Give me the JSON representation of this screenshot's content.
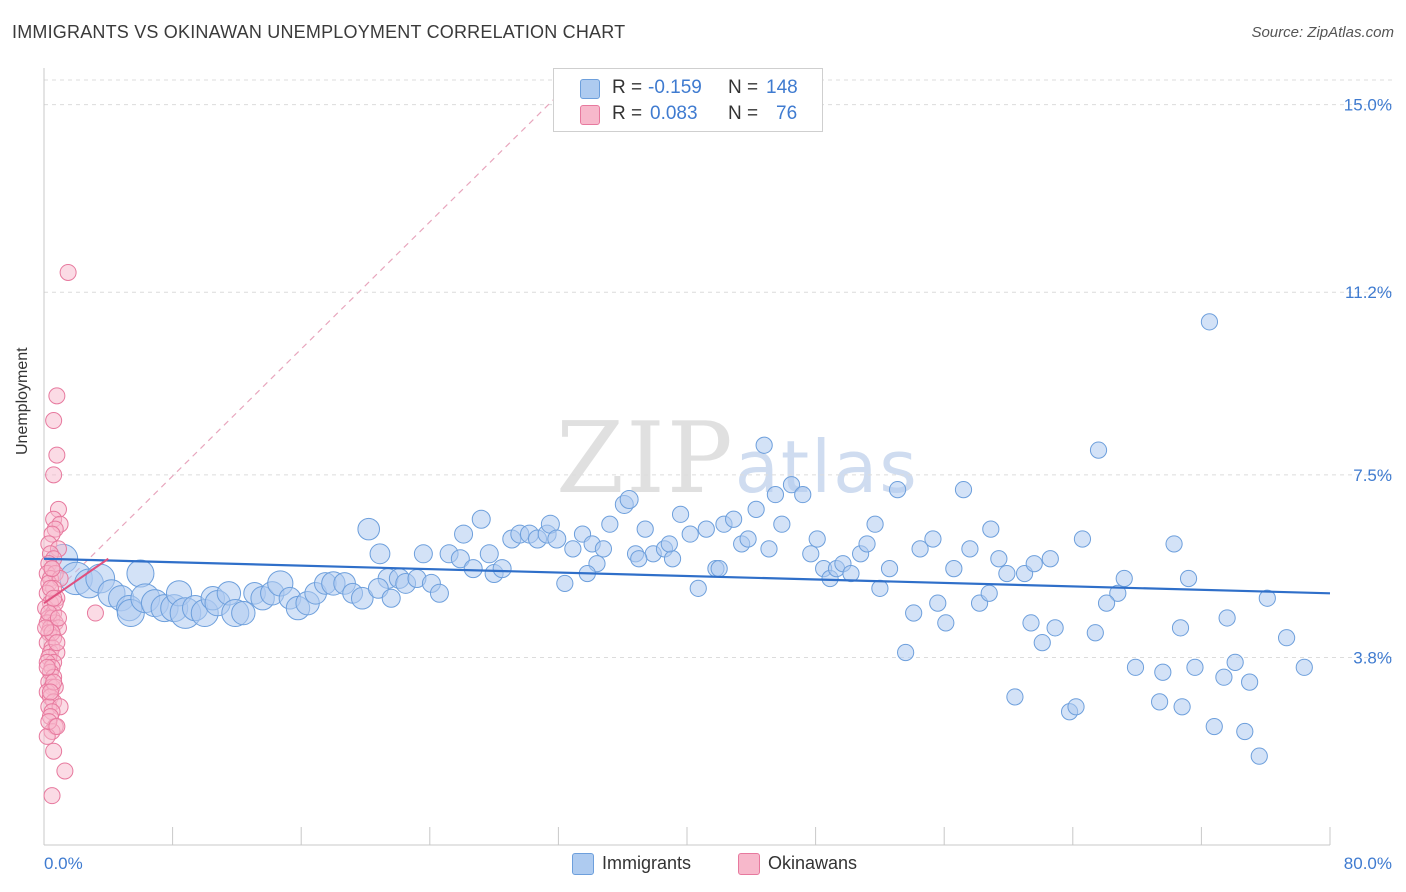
{
  "header": {
    "title": "IMMIGRANTS VS OKINAWAN UNEMPLOYMENT CORRELATION CHART",
    "source": "Source: ZipAtlas.com"
  },
  "watermark": {
    "zip": "ZIP",
    "atlas": "atlas"
  },
  "legend": {
    "immigrants": {
      "r_label": "R =",
      "r_value": "-0.159",
      "n_label": "N =",
      "n_value": "148"
    },
    "okinawans": {
      "r_label": "R =",
      "r_value": "0.083",
      "n_label": "N =",
      "n_value": "76"
    }
  },
  "bottom_legend": {
    "immigrants": "Immigrants",
    "okinawans": "Okinawans"
  },
  "colors": {
    "blue_fill": "#aecbf0",
    "blue_stroke": "#6d9fdc",
    "blue_line": "#2f6fc9",
    "pink_fill": "#f7b8cb",
    "pink_stroke": "#e7799e",
    "pink_line": "#e0507f",
    "label_blue": "#3f7bd0"
  },
  "chart_data": {
    "type": "scatter",
    "title": "IMMIGRANTS VS OKINAWAN UNEMPLOYMENT CORRELATION CHART",
    "xlabel": "",
    "ylabel": "Unemployment",
    "xlim": [
      0,
      80
    ],
    "ylim": [
      0,
      15.5
    ],
    "x_tick_labels": [
      "0.0%",
      "80.0%"
    ],
    "y_ticks": [
      3.8,
      7.5,
      11.2,
      15.0
    ],
    "y_tick_labels": [
      "3.8%",
      "7.5%",
      "11.2%",
      "15.0%"
    ],
    "grid": true,
    "series": [
      {
        "name": "Immigrants",
        "r": -0.159,
        "n": 148,
        "trend": {
          "x": [
            0,
            80
          ],
          "y": [
            5.8,
            5.1
          ]
        },
        "points": [
          [
            1.2,
            5.8,
            1.6
          ],
          [
            2.0,
            5.4,
            1.8
          ],
          [
            2.8,
            5.3,
            1.6
          ],
          [
            3.5,
            5.4,
            1.6
          ],
          [
            4.2,
            5.1,
            1.5
          ],
          [
            4.8,
            5.0,
            1.4
          ],
          [
            5.3,
            4.8,
            1.4
          ],
          [
            5.4,
            4.7,
            1.5
          ],
          [
            6.0,
            5.5,
            1.5
          ],
          [
            6.3,
            5.0,
            1.6
          ],
          [
            6.9,
            4.9,
            1.5
          ],
          [
            7.5,
            4.8,
            1.5
          ],
          [
            8.1,
            4.8,
            1.5
          ],
          [
            8.4,
            5.1,
            1.4
          ],
          [
            8.8,
            4.7,
            1.7
          ],
          [
            9.4,
            4.8,
            1.4
          ],
          [
            10.0,
            4.7,
            1.5
          ],
          [
            10.5,
            5.0,
            1.3
          ],
          [
            10.8,
            4.9,
            1.4
          ],
          [
            11.5,
            5.1,
            1.3
          ],
          [
            11.9,
            4.7,
            1.5
          ],
          [
            12.4,
            4.7,
            1.3
          ],
          [
            13.1,
            5.1,
            1.2
          ],
          [
            13.6,
            5.0,
            1.3
          ],
          [
            14.2,
            5.1,
            1.3
          ],
          [
            14.7,
            5.3,
            1.4
          ],
          [
            15.3,
            5.0,
            1.2
          ],
          [
            15.8,
            4.8,
            1.3
          ],
          [
            16.4,
            4.9,
            1.3
          ],
          [
            16.9,
            5.1,
            1.2
          ],
          [
            17.5,
            5.3,
            1.2
          ],
          [
            18.0,
            5.3,
            1.3
          ],
          [
            18.7,
            5.3,
            1.2
          ],
          [
            19.2,
            5.1,
            1.1
          ],
          [
            20.2,
            6.4,
            1.2
          ],
          [
            20.9,
            5.9,
            1.1
          ],
          [
            21.4,
            5.4,
            1.1
          ],
          [
            22.1,
            5.4,
            1.1
          ],
          [
            22.5,
            5.3,
            1.1
          ],
          [
            23.2,
            5.4,
            1.0
          ],
          [
            23.6,
            5.9,
            1.0
          ],
          [
            24.1,
            5.3,
            1.0
          ],
          [
            24.6,
            5.1,
            1.0
          ],
          [
            25.2,
            5.9,
            1.0
          ],
          [
            25.9,
            5.8,
            1.0
          ],
          [
            26.1,
            6.3,
            1.0
          ],
          [
            26.7,
            5.6,
            1.0
          ],
          [
            27.2,
            6.6,
            1.0
          ],
          [
            27.7,
            5.9,
            1.0
          ],
          [
            28.0,
            5.5,
            1.0
          ],
          [
            28.5,
            5.6,
            1.0
          ],
          [
            29.1,
            6.2,
            1.0
          ],
          [
            29.6,
            6.3,
            1.0
          ],
          [
            30.2,
            6.3,
            1.0
          ],
          [
            30.7,
            6.2,
            1.0
          ],
          [
            31.3,
            6.3,
            1.0
          ],
          [
            31.5,
            6.5,
            1.0
          ],
          [
            31.9,
            6.2,
            1.0
          ],
          [
            32.4,
            5.3,
            0.9
          ],
          [
            32.9,
            6.0,
            0.9
          ],
          [
            33.5,
            6.3,
            0.9
          ],
          [
            34.1,
            6.1,
            0.9
          ],
          [
            34.8,
            6.0,
            0.9
          ],
          [
            35.2,
            6.5,
            0.9
          ],
          [
            36.1,
            6.9,
            1.0
          ],
          [
            36.4,
            7.0,
            1.0
          ],
          [
            36.8,
            5.9,
            0.9
          ],
          [
            37.4,
            6.4,
            0.9
          ],
          [
            37.9,
            5.9,
            0.9
          ],
          [
            38.6,
            6.0,
            0.9
          ],
          [
            39.1,
            5.8,
            0.9
          ],
          [
            39.6,
            6.7,
            0.9
          ],
          [
            40.2,
            6.3,
            0.9
          ],
          [
            40.7,
            5.2,
            0.9
          ],
          [
            41.2,
            6.4,
            0.9
          ],
          [
            41.8,
            5.6,
            0.9
          ],
          [
            42.3,
            6.5,
            0.9
          ],
          [
            42.9,
            6.6,
            0.9
          ],
          [
            43.4,
            6.1,
            0.9
          ],
          [
            43.8,
            6.2,
            0.9
          ],
          [
            44.3,
            6.8,
            0.9
          ],
          [
            44.8,
            8.1,
            0.9
          ],
          [
            45.5,
            7.1,
            0.9
          ],
          [
            45.9,
            6.5,
            0.9
          ],
          [
            46.5,
            7.3,
            0.9
          ],
          [
            47.2,
            7.1,
            0.9
          ],
          [
            47.7,
            5.9,
            0.9
          ],
          [
            48.1,
            6.2,
            0.9
          ],
          [
            48.5,
            5.6,
            0.9
          ],
          [
            48.9,
            5.4,
            0.9
          ],
          [
            49.3,
            5.6,
            0.9
          ],
          [
            49.7,
            5.7,
            0.9
          ],
          [
            50.2,
            5.5,
            0.9
          ],
          [
            50.8,
            5.9,
            0.9
          ],
          [
            51.2,
            6.1,
            0.9
          ],
          [
            51.7,
            6.5,
            0.9
          ],
          [
            52.0,
            5.2,
            0.9
          ],
          [
            52.6,
            5.6,
            0.9
          ],
          [
            53.1,
            7.2,
            0.9
          ],
          [
            53.6,
            3.9,
            0.9
          ],
          [
            54.1,
            4.7,
            0.9
          ],
          [
            54.5,
            6.0,
            0.9
          ],
          [
            55.3,
            6.2,
            0.9
          ],
          [
            55.6,
            4.9,
            0.9
          ],
          [
            56.1,
            4.5,
            0.9
          ],
          [
            56.6,
            5.6,
            0.9
          ],
          [
            57.2,
            7.2,
            0.9
          ],
          [
            57.6,
            6.0,
            0.9
          ],
          [
            58.2,
            4.9,
            0.9
          ],
          [
            58.8,
            5.1,
            0.9
          ],
          [
            59.4,
            5.8,
            0.9
          ],
          [
            59.9,
            5.5,
            0.9
          ],
          [
            60.4,
            3.0,
            0.9
          ],
          [
            61.0,
            5.5,
            0.9
          ],
          [
            61.4,
            4.5,
            0.9
          ],
          [
            62.1,
            4.1,
            0.9
          ],
          [
            62.6,
            5.8,
            0.9
          ],
          [
            62.9,
            4.4,
            0.9
          ],
          [
            63.8,
            2.7,
            0.9
          ],
          [
            64.2,
            2.8,
            0.9
          ],
          [
            64.6,
            6.2,
            0.9
          ],
          [
            65.4,
            4.3,
            0.9
          ],
          [
            65.6,
            8.0,
            0.9
          ],
          [
            66.8,
            5.1,
            0.9
          ],
          [
            67.9,
            3.6,
            0.9
          ],
          [
            69.4,
            2.9,
            0.9
          ],
          [
            69.6,
            3.5,
            0.9
          ],
          [
            70.3,
            6.1,
            0.9
          ],
          [
            70.8,
            2.8,
            0.9
          ],
          [
            71.2,
            5.4,
            0.9
          ],
          [
            71.6,
            3.6,
            0.9
          ],
          [
            72.5,
            10.6,
            0.9
          ],
          [
            72.8,
            2.4,
            0.9
          ],
          [
            73.4,
            3.4,
            0.9
          ],
          [
            73.6,
            4.6,
            0.9
          ],
          [
            74.1,
            3.7,
            0.9
          ],
          [
            74.7,
            2.3,
            0.9
          ],
          [
            75.0,
            3.3,
            0.9
          ],
          [
            75.6,
            1.8,
            0.9
          ],
          [
            78.4,
            3.6,
            0.9
          ],
          [
            19.8,
            5.0,
            1.2
          ],
          [
            20.8,
            5.2,
            1.1
          ],
          [
            21.6,
            5.0,
            1.0
          ],
          [
            34.4,
            5.7,
            0.9
          ],
          [
            37.0,
            5.8,
            0.9
          ],
          [
            38.9,
            6.1,
            0.9
          ],
          [
            42.0,
            5.6,
            0.9
          ],
          [
            45.1,
            6.0,
            0.9
          ],
          [
            58.9,
            6.4,
            0.9
          ],
          [
            61.6,
            5.7,
            0.9
          ],
          [
            66.1,
            4.9,
            0.9
          ],
          [
            70.7,
            4.4,
            0.9
          ],
          [
            77.3,
            4.2,
            0.9
          ],
          [
            76.1,
            5.0,
            0.9
          ],
          [
            67.2,
            5.4,
            0.9
          ],
          [
            33.8,
            5.5,
            0.9
          ]
        ]
      },
      {
        "name": "Okinawans",
        "r": 0.083,
        "n": 76,
        "trend_solid": {
          "x": [
            0,
            4.0
          ],
          "y": [
            4.9,
            5.8
          ]
        },
        "trend_dashed": {
          "x": [
            0,
            32.0
          ],
          "y": [
            4.9,
            15.2
          ]
        },
        "points": [
          [
            1.5,
            11.6
          ],
          [
            0.8,
            9.1
          ],
          [
            0.6,
            8.6
          ],
          [
            0.8,
            7.9
          ],
          [
            0.6,
            7.5
          ],
          [
            0.9,
            6.8
          ],
          [
            0.6,
            6.6
          ],
          [
            1.0,
            6.5
          ],
          [
            0.7,
            6.4
          ],
          [
            0.5,
            6.3
          ],
          [
            0.3,
            6.1
          ],
          [
            0.9,
            6.0
          ],
          [
            0.4,
            5.9
          ],
          [
            0.6,
            5.8
          ],
          [
            0.3,
            5.7
          ],
          [
            0.5,
            5.6
          ],
          [
            0.2,
            5.5
          ],
          [
            0.7,
            5.5
          ],
          [
            0.4,
            5.4
          ],
          [
            0.3,
            5.3
          ],
          [
            1.0,
            5.4
          ],
          [
            0.6,
            5.2
          ],
          [
            0.2,
            5.1
          ],
          [
            0.8,
            5.0
          ],
          [
            0.4,
            4.9
          ],
          [
            0.1,
            4.8
          ],
          [
            0.6,
            4.7
          ],
          [
            0.3,
            4.6
          ],
          [
            0.5,
            4.6
          ],
          [
            3.2,
            4.7
          ],
          [
            0.2,
            4.5
          ],
          [
            0.7,
            4.5
          ],
          [
            0.4,
            4.4
          ],
          [
            0.9,
            4.4
          ],
          [
            0.3,
            4.3
          ],
          [
            0.6,
            4.2
          ],
          [
            0.2,
            4.1
          ],
          [
            0.5,
            4.0
          ],
          [
            0.4,
            3.9
          ],
          [
            0.8,
            3.9
          ],
          [
            0.3,
            3.8
          ],
          [
            0.6,
            3.7
          ],
          [
            0.2,
            3.7
          ],
          [
            0.5,
            3.6
          ],
          [
            0.4,
            3.5
          ],
          [
            0.6,
            3.4
          ],
          [
            0.3,
            3.3
          ],
          [
            0.5,
            3.2
          ],
          [
            0.7,
            3.2
          ],
          [
            0.2,
            3.1
          ],
          [
            0.4,
            3.0
          ],
          [
            0.6,
            2.9
          ],
          [
            0.3,
            2.8
          ],
          [
            1.0,
            2.8
          ],
          [
            0.5,
            2.7
          ],
          [
            0.4,
            2.6
          ],
          [
            0.7,
            2.4
          ],
          [
            0.5,
            2.3
          ],
          [
            0.2,
            2.2
          ],
          [
            0.6,
            1.9
          ],
          [
            1.3,
            1.5
          ],
          [
            0.5,
            1.0
          ],
          [
            0.4,
            5.2
          ],
          [
            0.7,
            4.9
          ],
          [
            0.3,
            4.7
          ],
          [
            0.5,
            4.3
          ],
          [
            0.8,
            4.1
          ],
          [
            0.2,
            3.6
          ],
          [
            0.6,
            3.3
          ],
          [
            0.4,
            3.1
          ],
          [
            0.3,
            2.5
          ],
          [
            0.8,
            2.4
          ],
          [
            0.6,
            5.0
          ],
          [
            0.1,
            4.4
          ],
          [
            0.5,
            5.6
          ],
          [
            0.9,
            4.6
          ]
        ]
      }
    ]
  }
}
